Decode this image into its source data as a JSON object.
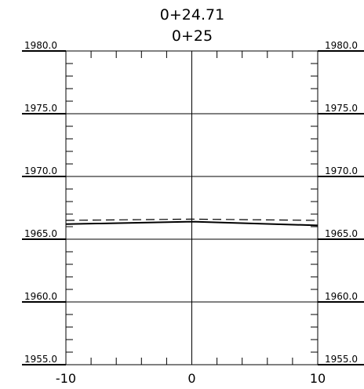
{
  "header": {
    "station_primary": "0+24.71",
    "station_secondary": "0+25"
  },
  "chart_data": {
    "type": "line",
    "xlim": [
      -10,
      10
    ],
    "ylim": [
      1955,
      1980
    ],
    "x_ticks": [
      -10,
      0,
      10
    ],
    "x_tick_labels": [
      "-10",
      "0",
      "10"
    ],
    "elevation_ticks": [
      1980,
      1975,
      1970,
      1965,
      1960,
      1955
    ],
    "elevation_labels_left": [
      "1980.0",
      "1975.0",
      "1970.0",
      "1965.0",
      "1960.0",
      "1955.0"
    ],
    "elevation_labels_right": [
      "1980.0",
      "1975.0",
      "1970.0",
      "1965.0",
      "1960.0",
      "1955.0"
    ],
    "grid": true,
    "series": [
      {
        "style": "solid",
        "x": [
          -10,
          0,
          10
        ],
        "y": [
          1966.2,
          1966.4,
          1966.1
        ]
      },
      {
        "style": "dashed",
        "x": [
          -10,
          0,
          10
        ],
        "y": [
          1966.5,
          1966.6,
          1966.5
        ]
      }
    ]
  }
}
